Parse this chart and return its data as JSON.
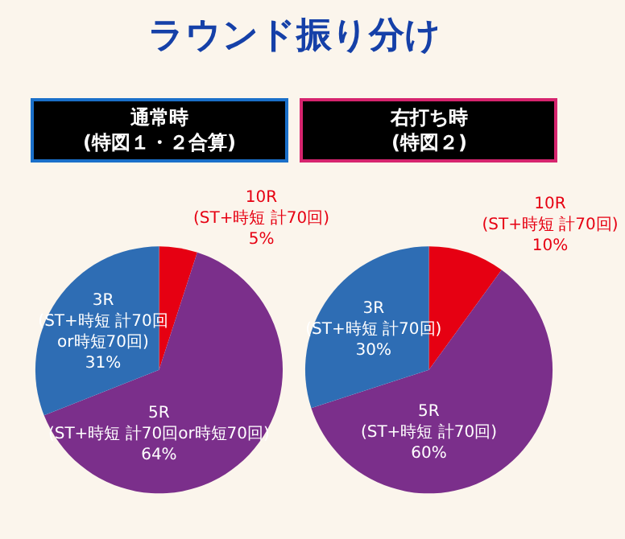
{
  "chart_data": [
    {
      "type": "pie",
      "title": "通常時",
      "subtitle": "(特図１・２合算)",
      "annotations": [
        "ラウンド振り分け"
      ],
      "categories": [
        "10R\n(ST+時短 計70回)",
        "5R\n(ST+時短 計70回or時短70回)",
        "3R\n(ST+時短 計70回\nor時短70回)"
      ],
      "values": [
        5,
        64,
        31
      ],
      "value_labels": [
        "5%",
        "64%",
        "31%"
      ],
      "colors": [
        "#e60012",
        "#7b2f8b",
        "#2e6db4"
      ]
    },
    {
      "type": "pie",
      "title": "右打ち時",
      "subtitle": "(特図２)",
      "categories": [
        "10R\n(ST+時短 計70回)",
        "5R\n(ST+時短 計70回)",
        "3R\n(ST+時短 計70回)"
      ],
      "values": [
        10,
        60,
        30
      ],
      "value_labels": [
        "10%",
        "60%",
        "30%"
      ],
      "colors": [
        "#e60012",
        "#7b2f8b",
        "#2e6db4"
      ]
    }
  ]
}
